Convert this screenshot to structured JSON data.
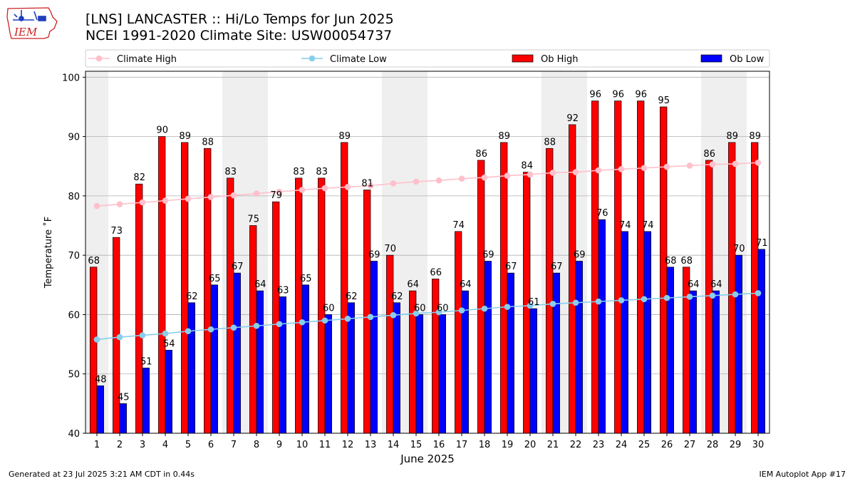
{
  "header": {
    "title_line1": "[LNS] LANCASTER :: Hi/Lo Temps for Jun 2025",
    "title_line2": "NCEI 1991-2020 Climate Site: USW00054737",
    "logo_text": "IEM"
  },
  "footer": {
    "generated": "Generated at 23 Jul 2025 3:21 AM CDT in 0.44s",
    "app": "IEM Autoplot App #17"
  },
  "chart_data": {
    "type": "bar",
    "xlabel": "June 2025",
    "ylabel": "Temperature ˚F",
    "ylim": [
      40,
      101
    ],
    "yticks": [
      40,
      50,
      60,
      70,
      80,
      90,
      100
    ],
    "grid": true,
    "legend_placement": "top",
    "categories": [
      "1",
      "2",
      "3",
      "4",
      "5",
      "6",
      "7",
      "8",
      "9",
      "10",
      "11",
      "12",
      "13",
      "14",
      "15",
      "16",
      "17",
      "18",
      "19",
      "20",
      "21",
      "22",
      "23",
      "24",
      "25",
      "26",
      "27",
      "28",
      "29",
      "30"
    ],
    "weekend_shading_days": [
      [
        1,
        1
      ],
      [
        7,
        8
      ],
      [
        14,
        15
      ],
      [
        21,
        22
      ],
      [
        28,
        29
      ]
    ],
    "series": [
      {
        "name": "Ob High",
        "kind": "bar",
        "color": "#ff0000",
        "values": [
          68,
          73,
          82,
          90,
          89,
          88,
          83,
          75,
          79,
          83,
          83,
          89,
          81,
          70,
          64,
          66,
          74,
          86,
          89,
          84,
          88,
          92,
          96,
          96,
          96,
          95,
          68,
          86,
          89,
          89
        ]
      },
      {
        "name": "Ob Low",
        "kind": "bar",
        "color": "#0000ff",
        "values": [
          48,
          45,
          51,
          54,
          62,
          65,
          67,
          64,
          63,
          65,
          60,
          62,
          69,
          62,
          60,
          60,
          64,
          69,
          67,
          61,
          67,
          69,
          76,
          74,
          74,
          68,
          64,
          64,
          70,
          71
        ]
      },
      {
        "name": "Climate High",
        "kind": "line",
        "color": "#ffc0cb",
        "values": [
          78.3,
          78.6,
          78.9,
          79.2,
          79.5,
          79.8,
          80.1,
          80.4,
          80.7,
          81.0,
          81.3,
          81.5,
          81.7,
          82.1,
          82.4,
          82.6,
          82.9,
          83.1,
          83.4,
          83.6,
          83.9,
          84.0,
          84.3,
          84.5,
          84.7,
          84.9,
          85.1,
          85.3,
          85.4,
          85.6
        ]
      },
      {
        "name": "Climate Low",
        "kind": "line",
        "color": "#87ceeb",
        "values": [
          55.8,
          56.2,
          56.5,
          56.8,
          57.2,
          57.5,
          57.8,
          58.1,
          58.4,
          58.7,
          59.0,
          59.3,
          59.6,
          59.9,
          60.2,
          60.4,
          60.7,
          61.0,
          61.3,
          61.5,
          61.8,
          62.0,
          62.2,
          62.4,
          62.6,
          62.8,
          63.0,
          63.2,
          63.4,
          63.6
        ]
      }
    ]
  },
  "colors": {
    "shade": "#efefef",
    "grid": "#b0b0b0",
    "logo_red": "#cc2222",
    "logo_blue": "#1f3fbf"
  }
}
